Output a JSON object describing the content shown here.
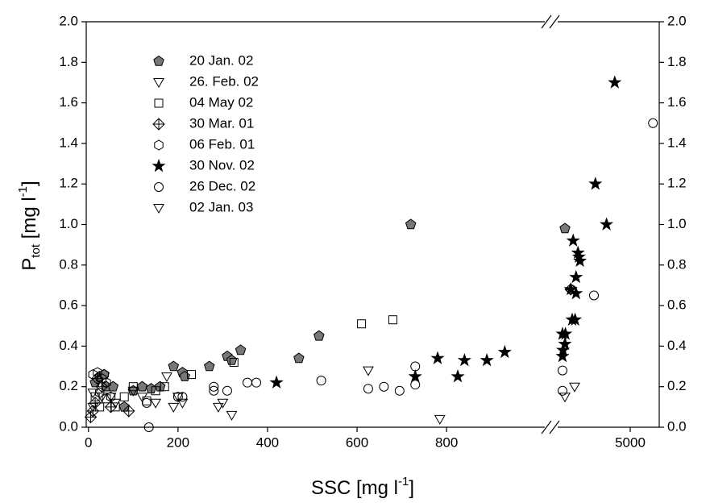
{
  "chart_data": {
    "type": "scatter",
    "xlabel": {
      "main": "SSC [mg l",
      "sup": "-1",
      "close": "]"
    },
    "ylabel": {
      "main": "P",
      "sub": "tot",
      "unit": " [mg l",
      "sup": "-1",
      "close": "]"
    },
    "x_segments": [
      [
        -5,
        1005
      ],
      [
        3600,
        5600
      ]
    ],
    "x_break": true,
    "xticks": [
      0,
      200,
      400,
      600,
      800,
      5000
    ],
    "ylim": [
      0,
      2.0
    ],
    "yticks": [
      {
        "value": 0,
        "label": "0.0"
      },
      {
        "value": 0.2,
        "label": "0.2"
      },
      {
        "value": 0.4,
        "label": "0.4"
      },
      {
        "value": 0.6,
        "label": "0.6"
      },
      {
        "value": 0.8,
        "label": "0.8"
      },
      {
        "value": 1.0,
        "label": "1.0"
      },
      {
        "value": 1.2,
        "label": "1.2"
      },
      {
        "value": 1.4,
        "label": "1.4"
      },
      {
        "value": 1.6,
        "label": "1.6"
      },
      {
        "value": 1.8,
        "label": "1.8"
      },
      {
        "value": 2.0,
        "label": "2.0"
      }
    ],
    "y2lim": [
      0,
      2.0
    ],
    "y2ticks": [
      {
        "value": 0,
        "label": "0.0"
      },
      {
        "value": 0.2,
        "label": "0.2"
      },
      {
        "value": 0.4,
        "label": "0.4"
      },
      {
        "value": 0.6,
        "label": "0.6"
      },
      {
        "value": 0.8,
        "label": "0.8"
      },
      {
        "value": 1.0,
        "label": "1.0"
      },
      {
        "value": 1.2,
        "label": "1.2"
      },
      {
        "value": 1.4,
        "label": "1.4"
      },
      {
        "value": 1.6,
        "label": "1.6"
      },
      {
        "value": 1.8,
        "label": "1.8"
      },
      {
        "value": 2.0,
        "label": "2.0"
      }
    ],
    "legend": "upper left",
    "series": [
      {
        "name": "20 Jan. 02",
        "marker": "pentagon",
        "color": "#777777",
        "filled": true,
        "x": [
          15,
          25,
          35,
          40,
          55,
          80,
          100,
          120,
          140,
          160,
          190,
          210,
          215,
          270,
          310,
          340,
          320,
          470,
          515,
          720,
          3650
        ],
        "values": [
          0.22,
          0.25,
          0.26,
          0.2,
          0.2,
          0.1,
          0.18,
          0.2,
          0.19,
          0.2,
          0.3,
          0.27,
          0.25,
          0.3,
          0.35,
          0.38,
          0.33,
          0.34,
          0.45,
          1.0,
          0.98
        ]
      },
      {
        "name": "26. Feb. 02",
        "marker": "triangle-down",
        "color": "#000000",
        "filled": false,
        "x": [
          10,
          30,
          60,
          100,
          120,
          150,
          175,
          190,
          200,
          210,
          290,
          300,
          320
        ],
        "values": [
          0.1,
          0.15,
          0.12,
          0.18,
          0.15,
          0.12,
          0.25,
          0.1,
          0.15,
          0.12,
          0.1,
          0.12,
          0.06
        ]
      },
      {
        "name": "04 May 02",
        "marker": "square",
        "color": "#000000",
        "filled": false,
        "x": [
          15,
          25,
          40,
          60,
          80,
          100,
          130,
          150,
          170,
          230,
          325,
          610,
          680
        ],
        "values": [
          0.15,
          0.1,
          0.14,
          0.1,
          0.15,
          0.2,
          0.13,
          0.18,
          0.2,
          0.26,
          0.32,
          0.51,
          0.53
        ]
      },
      {
        "name": "30 Mar. 01",
        "marker": "diamond-cross",
        "color": "#000000",
        "filled": false,
        "x": [
          5,
          10,
          15,
          20,
          30,
          50,
          90,
          3770
        ],
        "values": [
          0.05,
          0.08,
          0.12,
          0.24,
          0.2,
          0.1,
          0.08,
          0.68
        ]
      },
      {
        "name": "06 Feb. 01",
        "marker": "hexagon",
        "color": "#000000",
        "filled": false,
        "x": [
          10,
          20,
          30,
          35,
          40,
          25,
          50
        ],
        "values": [
          0.26,
          0.27,
          0.24,
          0.26,
          0.22,
          0.17,
          0.15
        ]
      },
      {
        "name": "30 Nov. 02",
        "marker": "star",
        "color": "#000000",
        "filled": true,
        "x": [
          420,
          730,
          780,
          825,
          840,
          890,
          930,
          3600,
          3610,
          3600,
          3650,
          3660,
          3800,
          3860,
          3770,
          3820,
          3880,
          3880,
          3920,
          3940,
          3960,
          4280,
          4510,
          4680
        ],
        "values": [
          0.22,
          0.25,
          0.34,
          0.25,
          0.33,
          0.33,
          0.37,
          0.35,
          0.38,
          0.46,
          0.41,
          0.46,
          0.53,
          0.53,
          0.68,
          0.92,
          0.66,
          0.74,
          0.86,
          0.84,
          0.82,
          1.2,
          1.0,
          1.7
        ]
      },
      {
        "name": "26 Dec. 02",
        "marker": "circle",
        "color": "#000000",
        "filled": false,
        "x": [
          135,
          130,
          200,
          210,
          280,
          280,
          310,
          355,
          375,
          520,
          625,
          660,
          695,
          730,
          730,
          3600,
          3600,
          3780,
          4250,
          5470
        ],
        "values": [
          0.0,
          0.12,
          0.15,
          0.15,
          0.18,
          0.2,
          0.18,
          0.22,
          0.22,
          0.23,
          0.19,
          0.2,
          0.18,
          0.3,
          0.21,
          0.28,
          0.18,
          0.68,
          0.65,
          1.5
        ]
      },
      {
        "name": "02 Jan. 03",
        "marker": "triangle-down",
        "color": "#000000",
        "filled": false,
        "x": [
          10,
          50,
          625,
          785,
          3650,
          3850
        ],
        "values": [
          0.17,
          0.15,
          0.28,
          0.04,
          0.15,
          0.2
        ]
      }
    ]
  }
}
